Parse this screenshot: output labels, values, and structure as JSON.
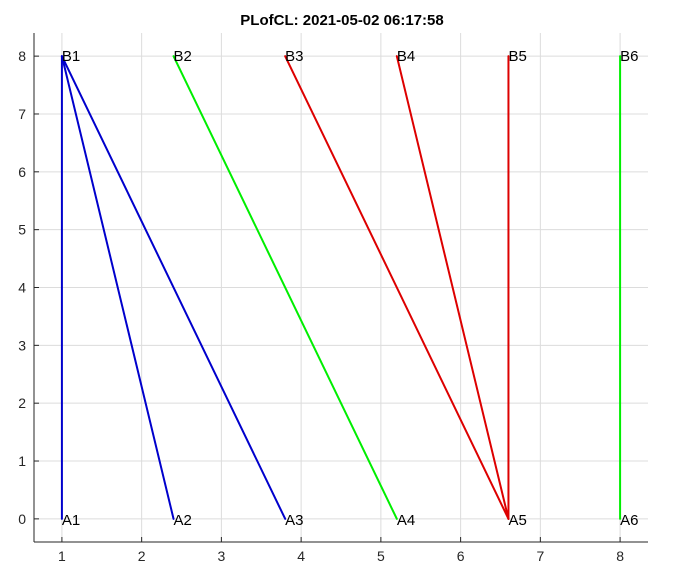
{
  "chart_data": {
    "type": "line",
    "title": "PLofCL: 2021-05-02 06:17:58",
    "xlabel": "",
    "ylabel": "",
    "xlim": [
      0.65,
      8.35
    ],
    "ylim": [
      -0.4,
      8.4
    ],
    "xticks": [
      1,
      2,
      3,
      4,
      5,
      6,
      7,
      8
    ],
    "yticks": [
      0,
      1,
      2,
      3,
      4,
      5,
      6,
      7,
      8
    ],
    "grid": true,
    "points": [
      {
        "name": "A1",
        "x": 1.0,
        "y": 0
      },
      {
        "name": "A2",
        "x": 2.4,
        "y": 0
      },
      {
        "name": "A3",
        "x": 3.8,
        "y": 0
      },
      {
        "name": "A4",
        "x": 5.2,
        "y": 0
      },
      {
        "name": "A5",
        "x": 6.6,
        "y": 0
      },
      {
        "name": "A6",
        "x": 8.0,
        "y": 0
      },
      {
        "name": "B1",
        "x": 1.0,
        "y": 8
      },
      {
        "name": "B2",
        "x": 2.4,
        "y": 8
      },
      {
        "name": "B3",
        "x": 3.8,
        "y": 8
      },
      {
        "name": "B4",
        "x": 5.2,
        "y": 8
      },
      {
        "name": "B5",
        "x": 6.6,
        "y": 8
      },
      {
        "name": "B6",
        "x": 8.0,
        "y": 8
      }
    ],
    "segments": [
      {
        "from": "A1",
        "to": "B1",
        "color": "#0000cc"
      },
      {
        "from": "A2",
        "to": "B1",
        "color": "#0000cc"
      },
      {
        "from": "A3",
        "to": "B1",
        "color": "#0000cc"
      },
      {
        "from": "A4",
        "to": "B2",
        "color": "#00ee00"
      },
      {
        "from": "A5",
        "to": "B3",
        "color": "#dd0000"
      },
      {
        "from": "A5",
        "to": "B4",
        "color": "#dd0000"
      },
      {
        "from": "A5",
        "to": "B5",
        "color": "#dd0000"
      },
      {
        "from": "A6",
        "to": "B6",
        "color": "#00ee00"
      }
    ]
  }
}
